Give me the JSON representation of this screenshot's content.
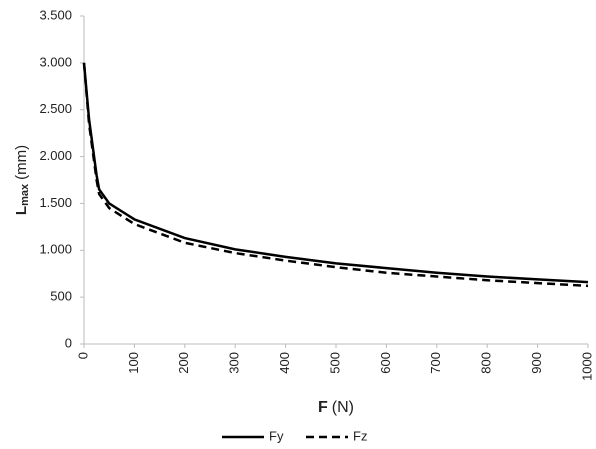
{
  "chart_data": {
    "type": "line",
    "ylabel": [
      "L",
      "max",
      "(mm)"
    ],
    "xlabel": [
      "F",
      "(N)"
    ],
    "xlim": [
      0,
      1000
    ],
    "xticks": [
      0,
      100,
      200,
      300,
      400,
      500,
      600,
      700,
      800,
      900,
      1000
    ],
    "ylim": [
      0,
      3500
    ],
    "yticks": [
      0,
      500,
      {
        "value": 1000,
        "label": "1.000"
      },
      {
        "value": 1500,
        "label": "1.500"
      },
      {
        "value": 2000,
        "label": "2.000"
      },
      {
        "value": 2500,
        "label": "2.500"
      },
      {
        "value": 3000,
        "label": "3.000"
      },
      {
        "value": 3500,
        "label": "3.500"
      }
    ],
    "grid": false,
    "legend": "bottom",
    "series": [
      {
        "name": "Fy",
        "color": "#000000",
        "line_style": "solid",
        "x": [
          0,
          10,
          25,
          30,
          50,
          100,
          200,
          300,
          400,
          500,
          600,
          700,
          800,
          900,
          1000
        ],
        "values": [
          3000,
          2400,
          1800,
          1650,
          1500,
          1330,
          1130,
          1010,
          930,
          860,
          810,
          760,
          720,
          690,
          660
        ]
      },
      {
        "name": "Fz",
        "color": "#000000",
        "line_style": "dashed",
        "x": [
          0,
          10,
          25,
          30,
          50,
          100,
          200,
          300,
          400,
          500,
          600,
          700,
          800,
          900,
          1000
        ],
        "values": [
          3000,
          2350,
          1750,
          1600,
          1450,
          1280,
          1080,
          970,
          890,
          820,
          760,
          720,
          680,
          650,
          620
        ]
      }
    ]
  }
}
